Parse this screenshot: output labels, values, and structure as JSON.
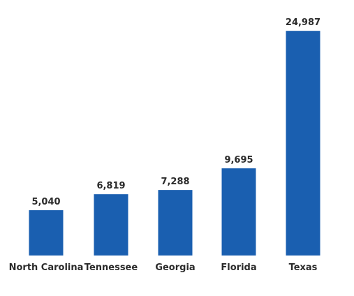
{
  "chart_data": {
    "type": "bar",
    "title": "",
    "xlabel": "",
    "ylabel": "",
    "categories": [
      "North Carolina",
      "Tennessee",
      "Georgia",
      "Florida",
      "Texas"
    ],
    "values": [
      5040,
      6819,
      7288,
      9695,
      24987
    ],
    "value_labels": [
      "5,040",
      "6,819",
      "7,288",
      "9,695",
      "24,987"
    ],
    "ylim": [
      0,
      25000
    ],
    "grid": false,
    "legend": "none",
    "bar_color": "#1a5fb0"
  }
}
